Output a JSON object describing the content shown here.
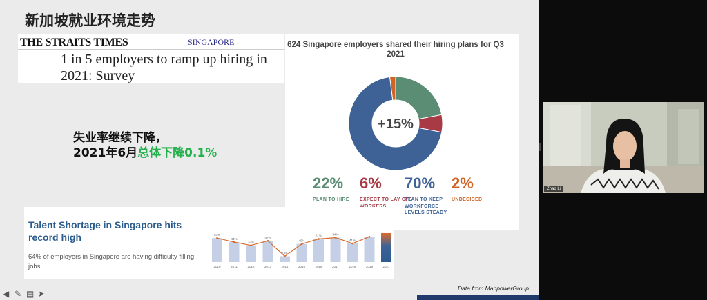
{
  "slide_title": "新加坡就业环境走势",
  "news": {
    "masthead": "THE STRAITS TIMES",
    "section": "SINGAPORE",
    "headline": "1 in 5 employers to ramp up hiring in 2021: Survey"
  },
  "unemployment": {
    "line1": "失业率继续下降，",
    "line2_prefix": "2021年6月",
    "line2_highlight": "总体下降0.1%"
  },
  "hiring_plans": {
    "title": "624 Singapore employers shared their hiring plans for Q3 2021",
    "center_label": "+15%",
    "donut": [
      {
        "label": "PLAN TO HIRE",
        "value": 22,
        "color": "#5b8c74"
      },
      {
        "label": "EXPECT TO LAY OFF WORKERS",
        "value": 6,
        "color": "#a83a45"
      },
      {
        "label": "PLAN TO KEEP WORKFORCE LEVELS STEADY",
        "value": 70,
        "color": "#3f6296"
      },
      {
        "label": "UNDECIDED",
        "value": 2,
        "color": "#d06426"
      }
    ],
    "stats": [
      {
        "value": "22%",
        "label": "PLAN TO HIRE",
        "color": "#5b8c74"
      },
      {
        "value": "6%",
        "label": "EXPECT TO LAY OFF WORKERS",
        "color": "#a83a45"
      },
      {
        "value": "70%",
        "label": "PLAN TO KEEP WORKFORCE LEVELS STEADY",
        "color": "#3f6296"
      },
      {
        "value": "2%",
        "label": "UNDECIDED",
        "color": "#d06426"
      }
    ]
  },
  "talent": {
    "title": "Talent Shortage in Singapore hits record high",
    "body": "64% of employers in Singapore are having difficulty filling jobs."
  },
  "chart_data": {
    "type": "bar",
    "categories": [
      "2010",
      "2011",
      "2012",
      "2013",
      "2014",
      "2015",
      "2016",
      "2017",
      "2018",
      "2019",
      "2021"
    ],
    "values": [
      53,
      44,
      37,
      47,
      13,
      40,
      51,
      54,
      41,
      56,
      64
    ],
    "data_labels": [
      "53%",
      "44%",
      "37%",
      "47%",
      "13%",
      "40%",
      "51%",
      "54%",
      "41%",
      "",
      ""
    ],
    "ylim": [
      0,
      70
    ],
    "bar_color": "#c5d0e6",
    "line_color": "#d96c2c"
  },
  "footer": {
    "data_source": "Data from ManpowerGroup"
  },
  "video": {
    "participant_name": "Zhao Li"
  }
}
